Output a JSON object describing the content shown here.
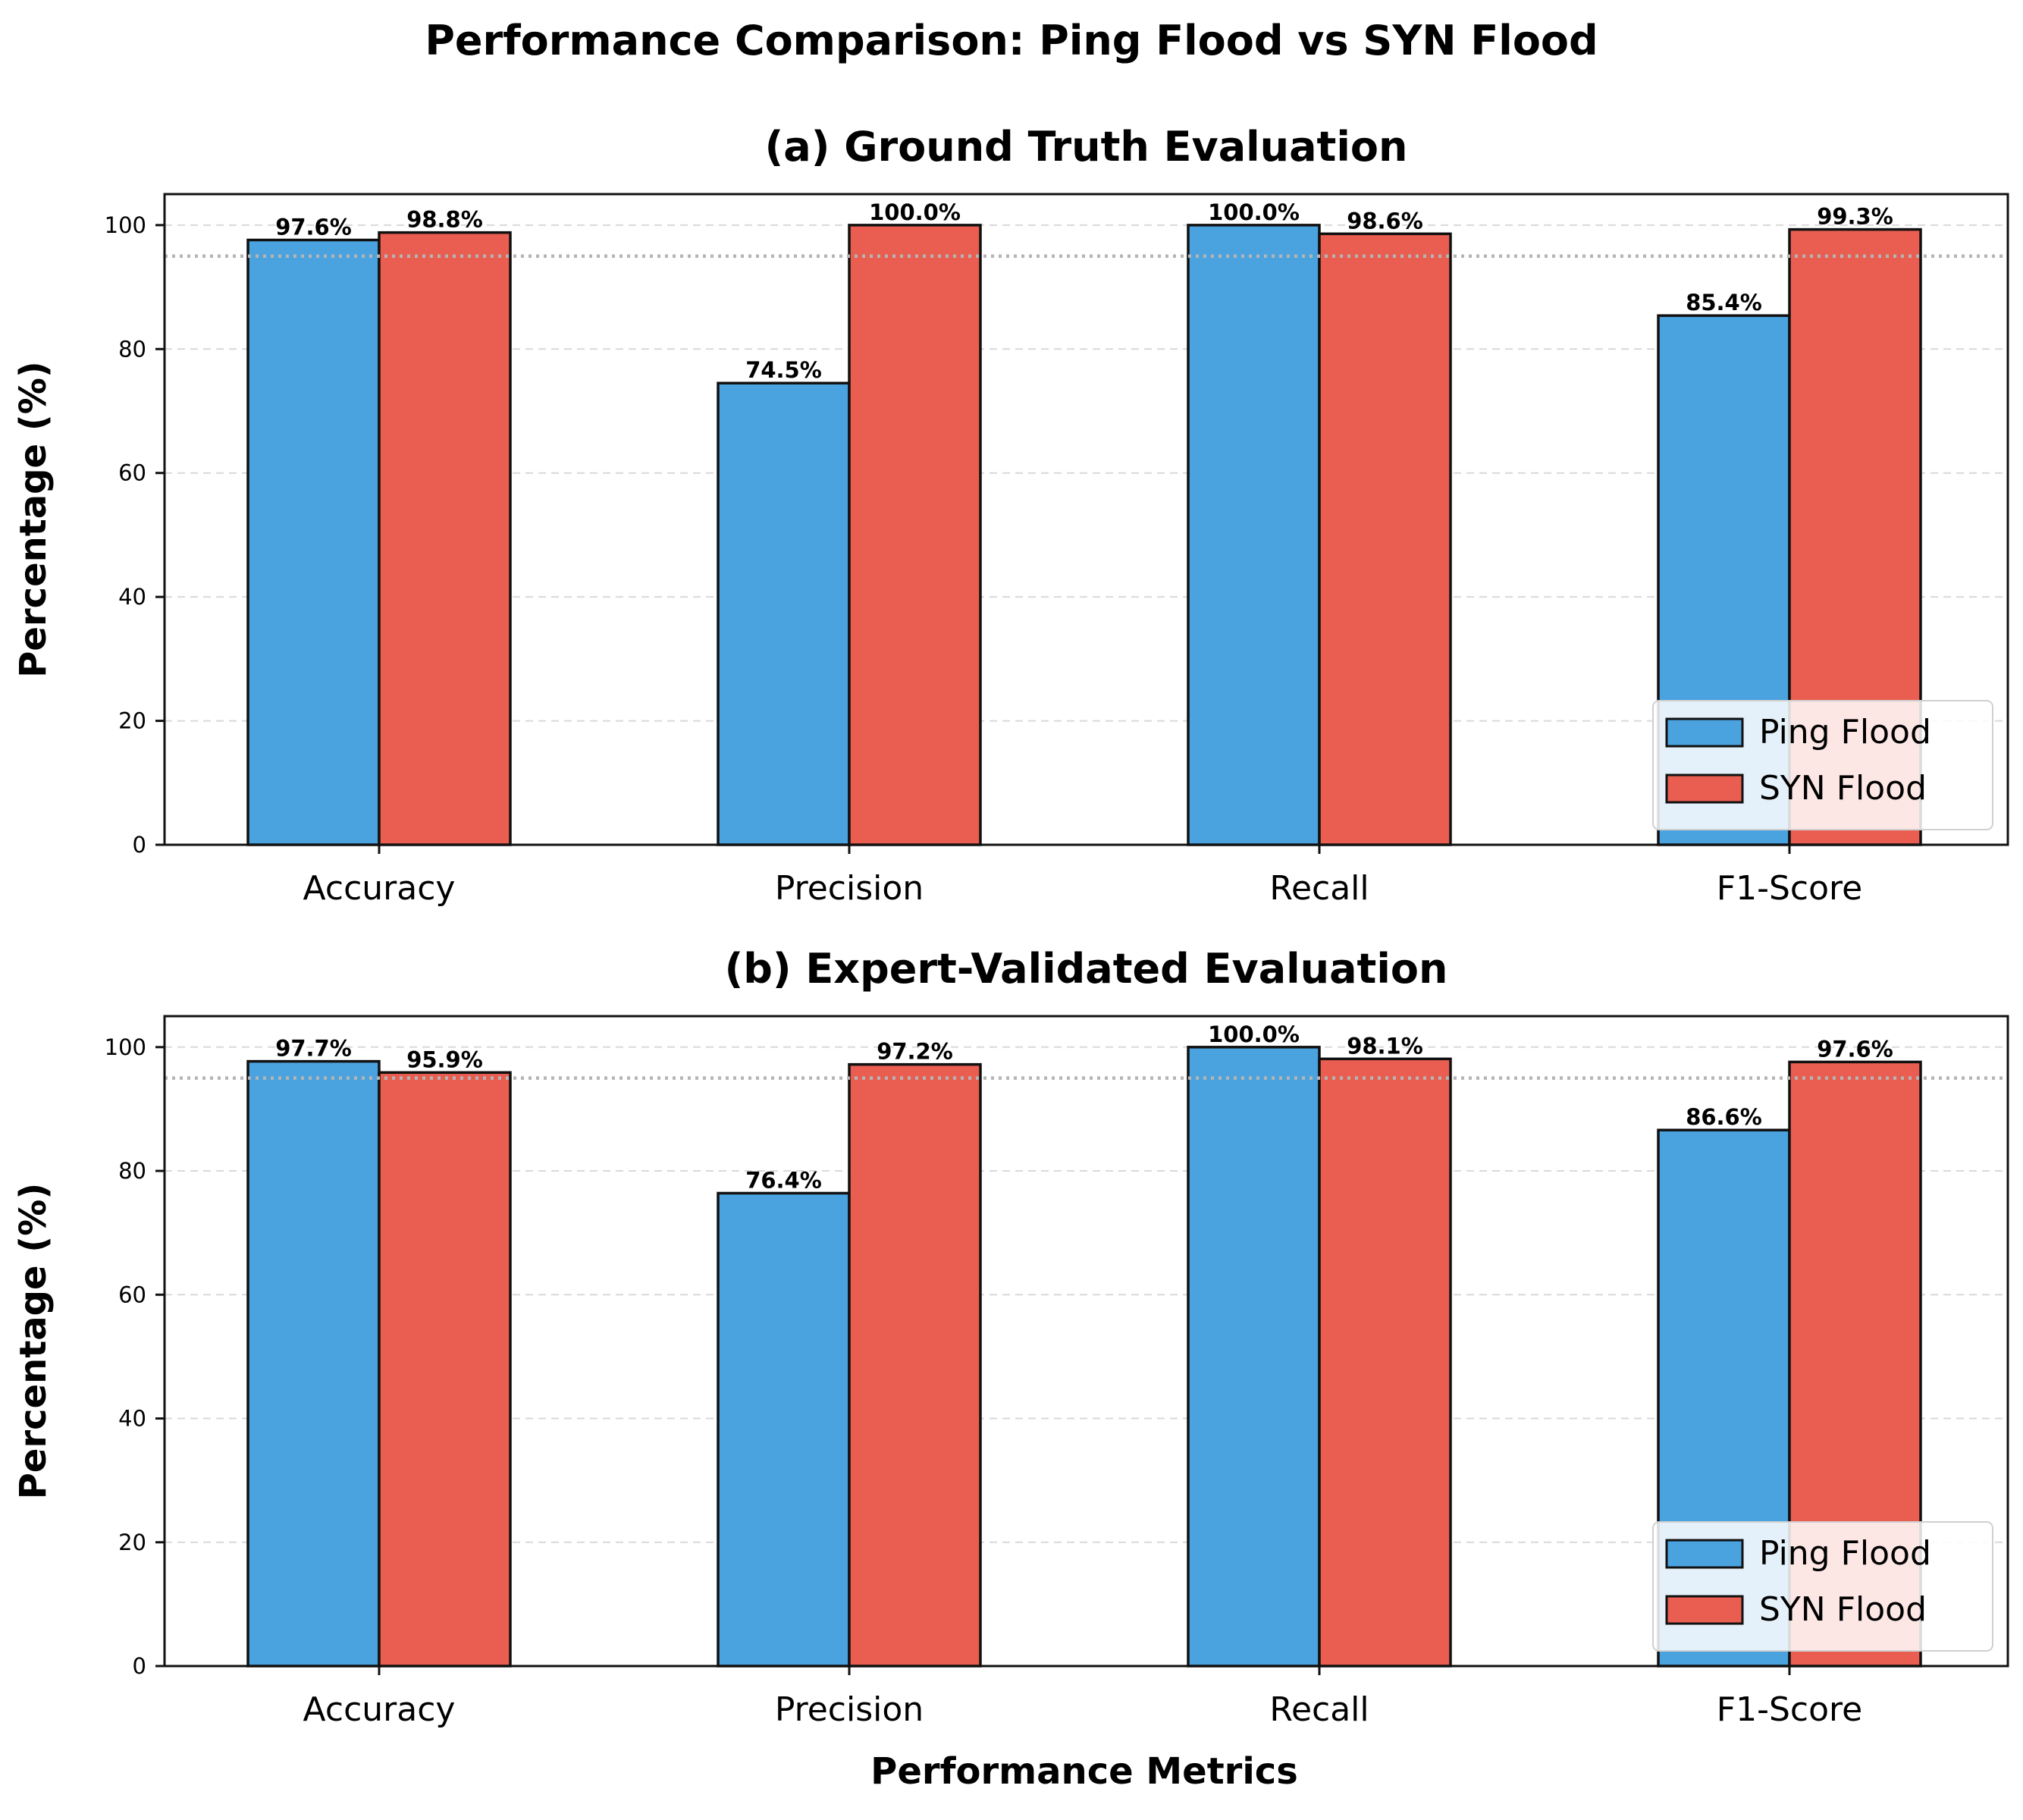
{
  "colors": {
    "ping": "#4aa2de",
    "syn": "#e95e50",
    "edge": "#111111",
    "grid": "#d9d9d9",
    "threshold": "#b5b5b5"
  },
  "chart_data": {
    "type": "bar",
    "title": "Performance Comparison: Ping Flood vs SYN Flood",
    "xlabel": "Performance Metrics",
    "threshold": 95,
    "panels": [
      {
        "title": "(a) Ground Truth Evaluation",
        "ylabel": "Percentage (%)",
        "ylim": [
          0,
          105
        ],
        "yticks": [
          0,
          20,
          40,
          60,
          80,
          100
        ],
        "grid": "horizontal dashed",
        "legend_position": "lower-right",
        "categories": [
          "Accuracy",
          "Precision",
          "Recall",
          "F1-Score"
        ],
        "series": [
          {
            "name": "Ping Flood",
            "values": [
              97.6,
              74.5,
              100.0,
              85.4
            ],
            "labels": [
              "97.6%",
              "74.5%",
              "100.0%",
              "85.4%"
            ]
          },
          {
            "name": "SYN Flood",
            "values": [
              98.8,
              100.0,
              98.6,
              99.3
            ],
            "labels": [
              "98.8%",
              "100.0%",
              "98.6%",
              "99.3%"
            ]
          }
        ]
      },
      {
        "title": "(b) Expert-Validated Evaluation",
        "ylabel": "Percentage (%)",
        "ylim": [
          0,
          105
        ],
        "yticks": [
          0,
          20,
          40,
          60,
          80,
          100
        ],
        "grid": "horizontal dashed",
        "legend_position": "lower-right",
        "categories": [
          "Accuracy",
          "Precision",
          "Recall",
          "F1-Score"
        ],
        "series": [
          {
            "name": "Ping Flood",
            "values": [
              97.7,
              76.4,
              100.0,
              86.6
            ],
            "labels": [
              "97.7%",
              "76.4%",
              "100.0%",
              "86.6%"
            ]
          },
          {
            "name": "SYN Flood",
            "values": [
              95.9,
              97.2,
              98.1,
              97.6
            ],
            "labels": [
              "95.9%",
              "97.2%",
              "98.1%",
              "97.6%"
            ]
          }
        ]
      }
    ]
  }
}
